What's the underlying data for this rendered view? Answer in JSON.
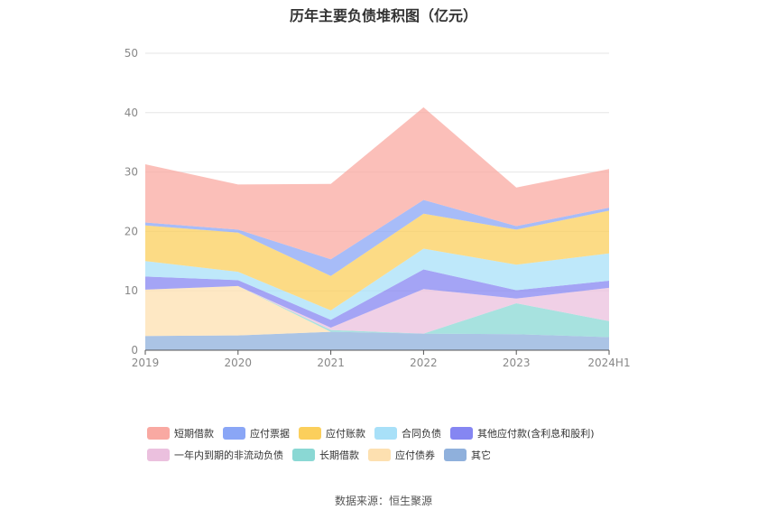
{
  "title": "历年主要负债堆积图（亿元）",
  "source": "数据来源：恒生聚源",
  "chart_data": {
    "type": "area",
    "stacked": true,
    "categories": [
      "2019",
      "2020",
      "2021",
      "2022",
      "2023",
      "2024H1"
    ],
    "ylim": [
      0,
      50
    ],
    "yticks": [
      0,
      10,
      20,
      30,
      40,
      50
    ],
    "grid": true,
    "legend_position": "bottom",
    "series": [
      {
        "name": "其它",
        "color": "#8fb0dc",
        "values": [
          2.4,
          2.5,
          3.1,
          2.8,
          2.7,
          2.2
        ]
      },
      {
        "name": "应付债券",
        "color": "#fde0b0",
        "values": [
          7.8,
          8.3,
          0,
          0,
          0,
          0
        ]
      },
      {
        "name": "长期借款",
        "color": "#8ad8d4",
        "values": [
          0,
          0,
          0.3,
          0,
          5.2,
          2.7
        ]
      },
      {
        "name": "一年内到期的非流动负债",
        "color": "#ebc0de",
        "values": [
          0,
          0,
          0.4,
          7.5,
          0.8,
          5.6
        ]
      },
      {
        "name": "其他应付款(含利息和股利)",
        "color": "#8586f2",
        "values": [
          2.2,
          1.0,
          1.3,
          3.3,
          1.4,
          1.2
        ]
      },
      {
        "name": "合同负债",
        "color": "#a8e0f8",
        "values": [
          2.6,
          1.4,
          1.6,
          3.5,
          4.3,
          4.6
        ]
      },
      {
        "name": "应付账款",
        "color": "#fbcf5c",
        "values": [
          6.0,
          6.6,
          5.8,
          5.9,
          5.9,
          7.2
        ]
      },
      {
        "name": "应付票据",
        "color": "#8aa6f6",
        "values": [
          0.5,
          0.5,
          2.8,
          2.3,
          0.6,
          0.5
        ]
      },
      {
        "name": "短期借款",
        "color": "#f9a9a2",
        "values": [
          9.8,
          7.6,
          12.7,
          15.6,
          6.5,
          6.5
        ]
      }
    ],
    "legend_order": [
      "短期借款",
      "应付票据",
      "应付账款",
      "合同负债",
      "其他应付款(含利息和股利)",
      "一年内到期的非流动负债",
      "长期借款",
      "应付债券",
      "其它"
    ]
  }
}
